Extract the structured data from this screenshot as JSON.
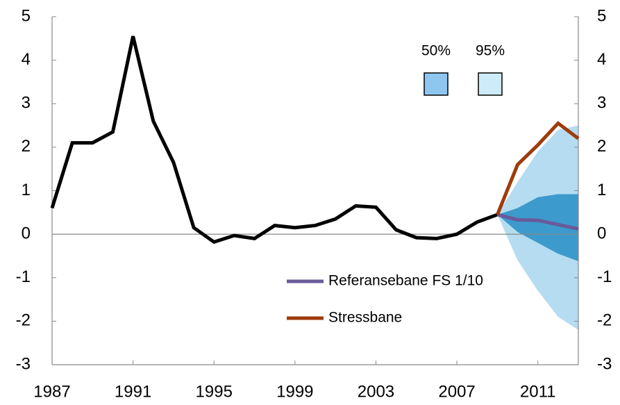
{
  "chart_data": {
    "type": "line",
    "x": [
      1987,
      1988,
      1989,
      1990,
      1991,
      1992,
      1993,
      1994,
      1995,
      1996,
      1997,
      1998,
      1999,
      2000,
      2001,
      2002,
      2003,
      2004,
      2005,
      2006,
      2007,
      2008,
      2009,
      2010,
      2011,
      2012,
      2013
    ],
    "xlim": [
      1987,
      2013
    ],
    "xticks": [
      1987,
      1991,
      1995,
      1999,
      2003,
      2007,
      2011
    ],
    "ylim": [
      -3,
      5
    ],
    "yticks": [
      -3,
      -2,
      -1,
      0,
      1,
      2,
      3,
      4,
      5
    ],
    "bands": [
      {
        "name": "95%",
        "color": "#b5dcf0",
        "legend_color": "#cdebf9",
        "x": [
          2009,
          2010,
          2011,
          2012,
          2013
        ],
        "lower": [
          0.45,
          -0.6,
          -1.3,
          -1.9,
          -2.2
        ],
        "upper": [
          0.45,
          1.2,
          1.9,
          2.4,
          2.5
        ]
      },
      {
        "name": "50%",
        "color": "#3d9acc",
        "legend_color": "#8ec6f0",
        "x": [
          2009,
          2010,
          2011,
          2012,
          2013
        ],
        "lower": [
          0.45,
          0.05,
          -0.2,
          -0.45,
          -0.62
        ],
        "upper": [
          0.45,
          0.6,
          0.85,
          0.92,
          0.92
        ]
      }
    ],
    "series": [
      {
        "color": "#000000",
        "values": [
          0.6,
          2.1,
          2.1,
          2.35,
          4.55,
          2.6,
          1.65,
          0.15,
          -0.18,
          -0.03,
          -0.1,
          0.2,
          0.15,
          0.2,
          0.35,
          0.65,
          0.62,
          0.1,
          -0.08,
          -0.1,
          0.0,
          0.28,
          0.45,
          null,
          null,
          null,
          null
        ]
      },
      {
        "name": "Referansebane FS 1/10",
        "color": "#6a5a9a",
        "values": [
          null,
          null,
          null,
          null,
          null,
          null,
          null,
          null,
          null,
          null,
          null,
          null,
          null,
          null,
          null,
          null,
          null,
          null,
          null,
          null,
          null,
          null,
          0.45,
          0.33,
          0.32,
          0.22,
          0.12
        ]
      },
      {
        "name": "Stressbane",
        "color": "#9e3b0c",
        "values": [
          null,
          null,
          null,
          null,
          null,
          null,
          null,
          null,
          null,
          null,
          null,
          null,
          null,
          null,
          null,
          null,
          null,
          null,
          null,
          null,
          null,
          null,
          0.45,
          1.6,
          2.05,
          2.55,
          2.2
        ]
      }
    ]
  }
}
